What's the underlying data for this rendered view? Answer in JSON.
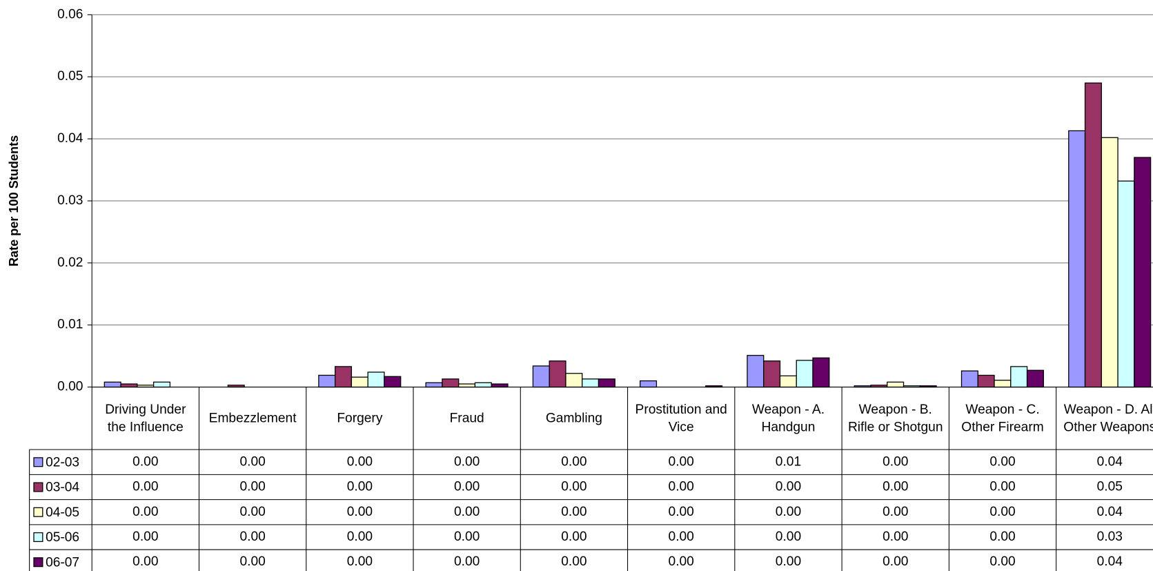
{
  "chart_data": {
    "type": "bar",
    "y_label": "Rate per 100 Students",
    "categories": [
      "Driving Under the Influence",
      "Embezzlement",
      "Forgery",
      "Fraud",
      "Gambling",
      "Prostitution and Vice",
      "Weapon - A. Handgun",
      "Weapon - B. Rifle or Shotgun",
      "Weapon - C. Other Firearm",
      "Weapon - D. All Other Weapons"
    ],
    "series": [
      {
        "name": "02-03",
        "color": "#9999ff",
        "values": [
          0.0008,
          0,
          0.0019,
          0.0007,
          0.0034,
          0.001,
          0.0051,
          0.0002,
          0.0026,
          0.0413
        ],
        "value_labels": [
          "0.00",
          "0.00",
          "0.00",
          "0.00",
          "0.00",
          "0.00",
          "0.01",
          "0.00",
          "0.00",
          "0.04"
        ]
      },
      {
        "name": "03-04",
        "color": "#993366",
        "values": [
          0.0005,
          0.0003,
          0.0033,
          0.0013,
          0.0042,
          0,
          0.0042,
          0.0003,
          0.0019,
          0.049
        ],
        "value_labels": [
          "0.00",
          "0.00",
          "0.00",
          "0.00",
          "0.00",
          "0.00",
          "0.00",
          "0.00",
          "0.00",
          "0.05"
        ]
      },
      {
        "name": "04-05",
        "color": "#ffffcc",
        "values": [
          0.0003,
          0,
          0.0016,
          0.0005,
          0.0022,
          0,
          0.0018,
          0.0008,
          0.0011,
          0.0402
        ],
        "value_labels": [
          "0.00",
          "0.00",
          "0.00",
          "0.00",
          "0.00",
          "0.00",
          "0.00",
          "0.00",
          "0.00",
          "0.04"
        ]
      },
      {
        "name": "05-06",
        "color": "#ccffff",
        "values": [
          0.0008,
          0,
          0.0024,
          0.0007,
          0.0013,
          0,
          0.0043,
          0.0002,
          0.0033,
          0.0332
        ],
        "value_labels": [
          "0.00",
          "0.00",
          "0.00",
          "0.00",
          "0.00",
          "0.00",
          "0.00",
          "0.00",
          "0.00",
          "0.03"
        ]
      },
      {
        "name": "06-07",
        "color": "#660066",
        "values": [
          0,
          0,
          0.0017,
          0.0005,
          0.0013,
          0.0002,
          0.0047,
          0.0002,
          0.0027,
          0.037
        ],
        "value_labels": [
          "0.00",
          "0.00",
          "0.00",
          "0.00",
          "0.00",
          "0.00",
          "0.00",
          "0.00",
          "0.00",
          "0.04"
        ]
      }
    ],
    "ylim": [
      0,
      0.06
    ],
    "yticks": [
      {
        "value": 0,
        "label": "0.00"
      },
      0.01,
      0.02,
      0.03,
      0.04,
      0.05,
      0.06
    ],
    "grid": true
  }
}
